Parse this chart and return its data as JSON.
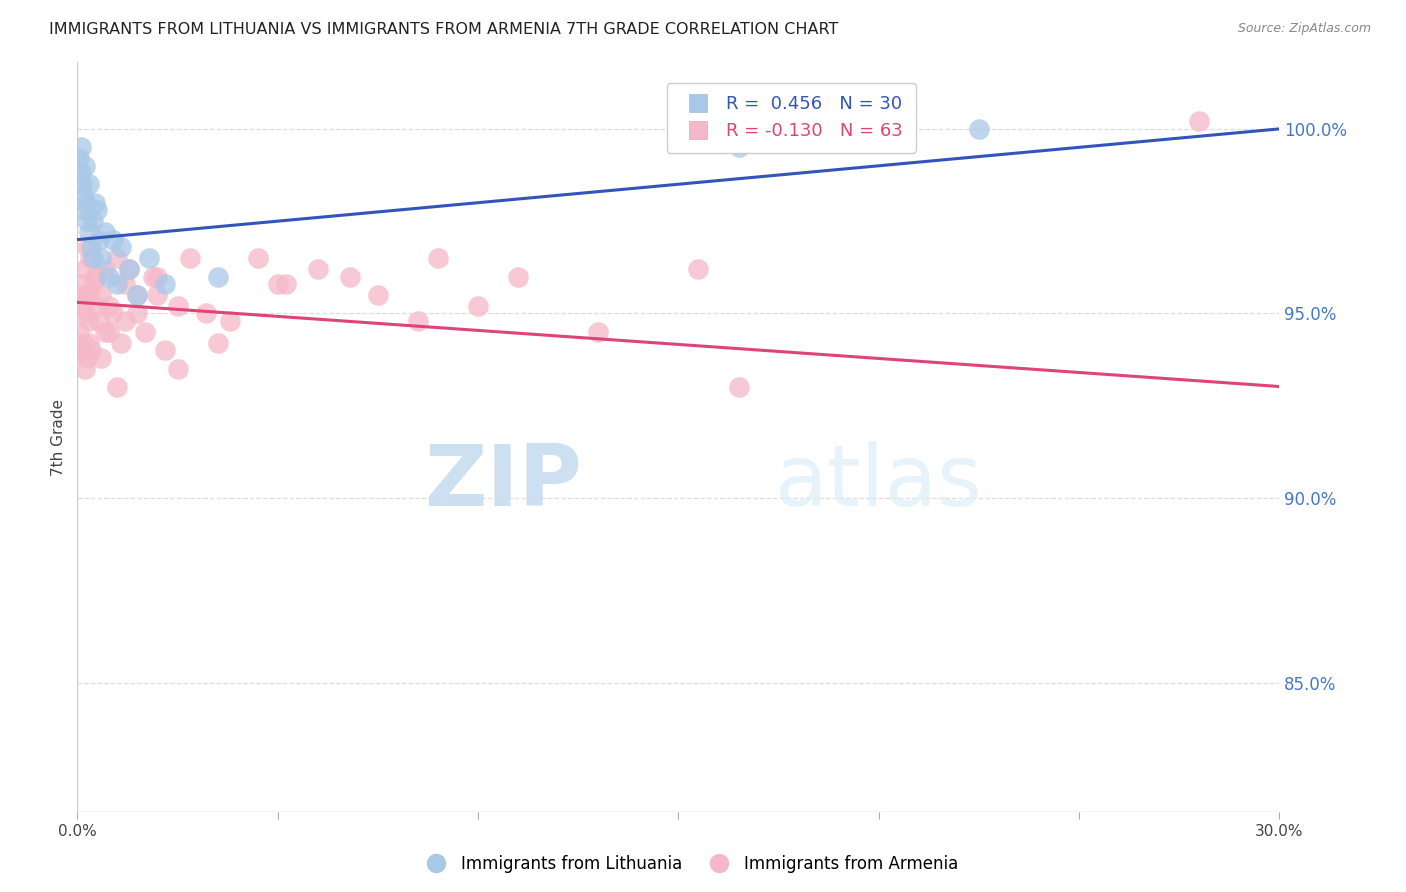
{
  "title": "IMMIGRANTS FROM LITHUANIA VS IMMIGRANTS FROM ARMENIA 7TH GRADE CORRELATION CHART",
  "source": "Source: ZipAtlas.com",
  "ylabel": "7th Grade",
  "right_yticks": [
    85.0,
    90.0,
    95.0,
    100.0
  ],
  "xmin": 0.0,
  "xmax": 30.0,
  "ymin": 81.5,
  "ymax": 101.8,
  "lithuania_color": "#a8c8e8",
  "armenia_color": "#f5b8c8",
  "trendline_lithuania_color": "#3355bb",
  "trendline_armenia_color": "#dd4477",
  "watermark_zip": "ZIP",
  "watermark_atlas": "atlas",
  "background_color": "#ffffff",
  "grid_color": "#dddddd",
  "lith_R": "0.456",
  "lith_N": "30",
  "arm_R": "-0.130",
  "arm_N": "63",
  "lith_x": [
    0.05,
    0.08,
    0.1,
    0.12,
    0.15,
    0.18,
    0.2,
    0.22,
    0.25,
    0.28,
    0.3,
    0.35,
    0.38,
    0.4,
    0.45,
    0.5,
    0.55,
    0.6,
    0.7,
    0.8,
    0.9,
    1.0,
    1.1,
    1.3,
    1.5,
    1.8,
    2.2,
    3.5,
    16.5,
    22.5
  ],
  "lith_y": [
    99.2,
    98.8,
    99.5,
    98.5,
    98.2,
    97.8,
    99.0,
    98.0,
    97.5,
    98.5,
    97.2,
    96.8,
    97.5,
    96.5,
    98.0,
    97.8,
    97.0,
    96.5,
    97.2,
    96.0,
    97.0,
    95.8,
    96.8,
    96.2,
    95.5,
    96.5,
    95.8,
    96.0,
    99.5,
    100.0
  ],
  "arm_x": [
    0.05,
    0.08,
    0.1,
    0.12,
    0.15,
    0.18,
    0.2,
    0.22,
    0.25,
    0.28,
    0.3,
    0.32,
    0.35,
    0.4,
    0.45,
    0.5,
    0.55,
    0.6,
    0.7,
    0.8,
    0.9,
    1.0,
    1.1,
    1.2,
    1.3,
    1.5,
    1.7,
    1.9,
    2.0,
    2.2,
    2.5,
    2.8,
    3.2,
    3.8,
    4.5,
    5.2,
    6.0,
    6.8,
    7.5,
    8.5,
    9.0,
    10.0,
    11.0,
    13.0,
    15.5,
    16.5,
    28.0
  ],
  "arm_y": [
    94.5,
    94.0,
    95.2,
    95.8,
    94.2,
    95.0,
    96.2,
    95.5,
    96.8,
    94.8,
    95.5,
    96.5,
    94.0,
    95.8,
    96.0,
    95.2,
    94.8,
    95.5,
    96.2,
    94.5,
    95.0,
    96.5,
    94.2,
    95.8,
    96.2,
    95.0,
    94.5,
    96.0,
    95.5,
    94.0,
    95.2,
    96.5,
    95.0,
    94.8,
    96.5,
    95.8,
    96.2,
    96.0,
    95.5,
    94.8,
    96.5,
    95.2,
    96.0,
    94.5,
    96.2,
    93.0,
    100.2
  ],
  "arm_x_extra": [
    0.1,
    0.15,
    0.2,
    0.25,
    0.3,
    0.5,
    0.6,
    0.7,
    0.8,
    1.0,
    1.2,
    1.5,
    2.0,
    2.5,
    3.5,
    5.0
  ],
  "arm_y_extra": [
    94.0,
    95.5,
    93.5,
    93.8,
    94.2,
    96.0,
    93.8,
    94.5,
    95.2,
    93.0,
    94.8,
    95.5,
    96.0,
    93.5,
    94.2,
    95.8
  ]
}
